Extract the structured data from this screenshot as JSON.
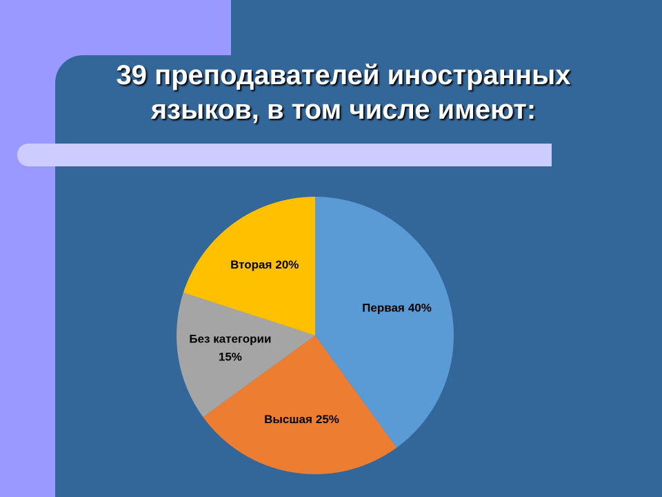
{
  "chart_data": {
    "type": "pie",
    "title": "39 преподавателей иностранных языков, в том числе имеют:",
    "categories": [
      "Первая",
      "Высшая",
      "Без категории",
      "Вторая"
    ],
    "values": [
      40,
      25,
      15,
      20
    ],
    "value_labels": [
      "40%",
      "25%",
      "15%",
      "20%"
    ],
    "colors": [
      "#5B9BD5",
      "#ED7D31",
      "#A5A5A5",
      "#FFC000"
    ]
  }
}
